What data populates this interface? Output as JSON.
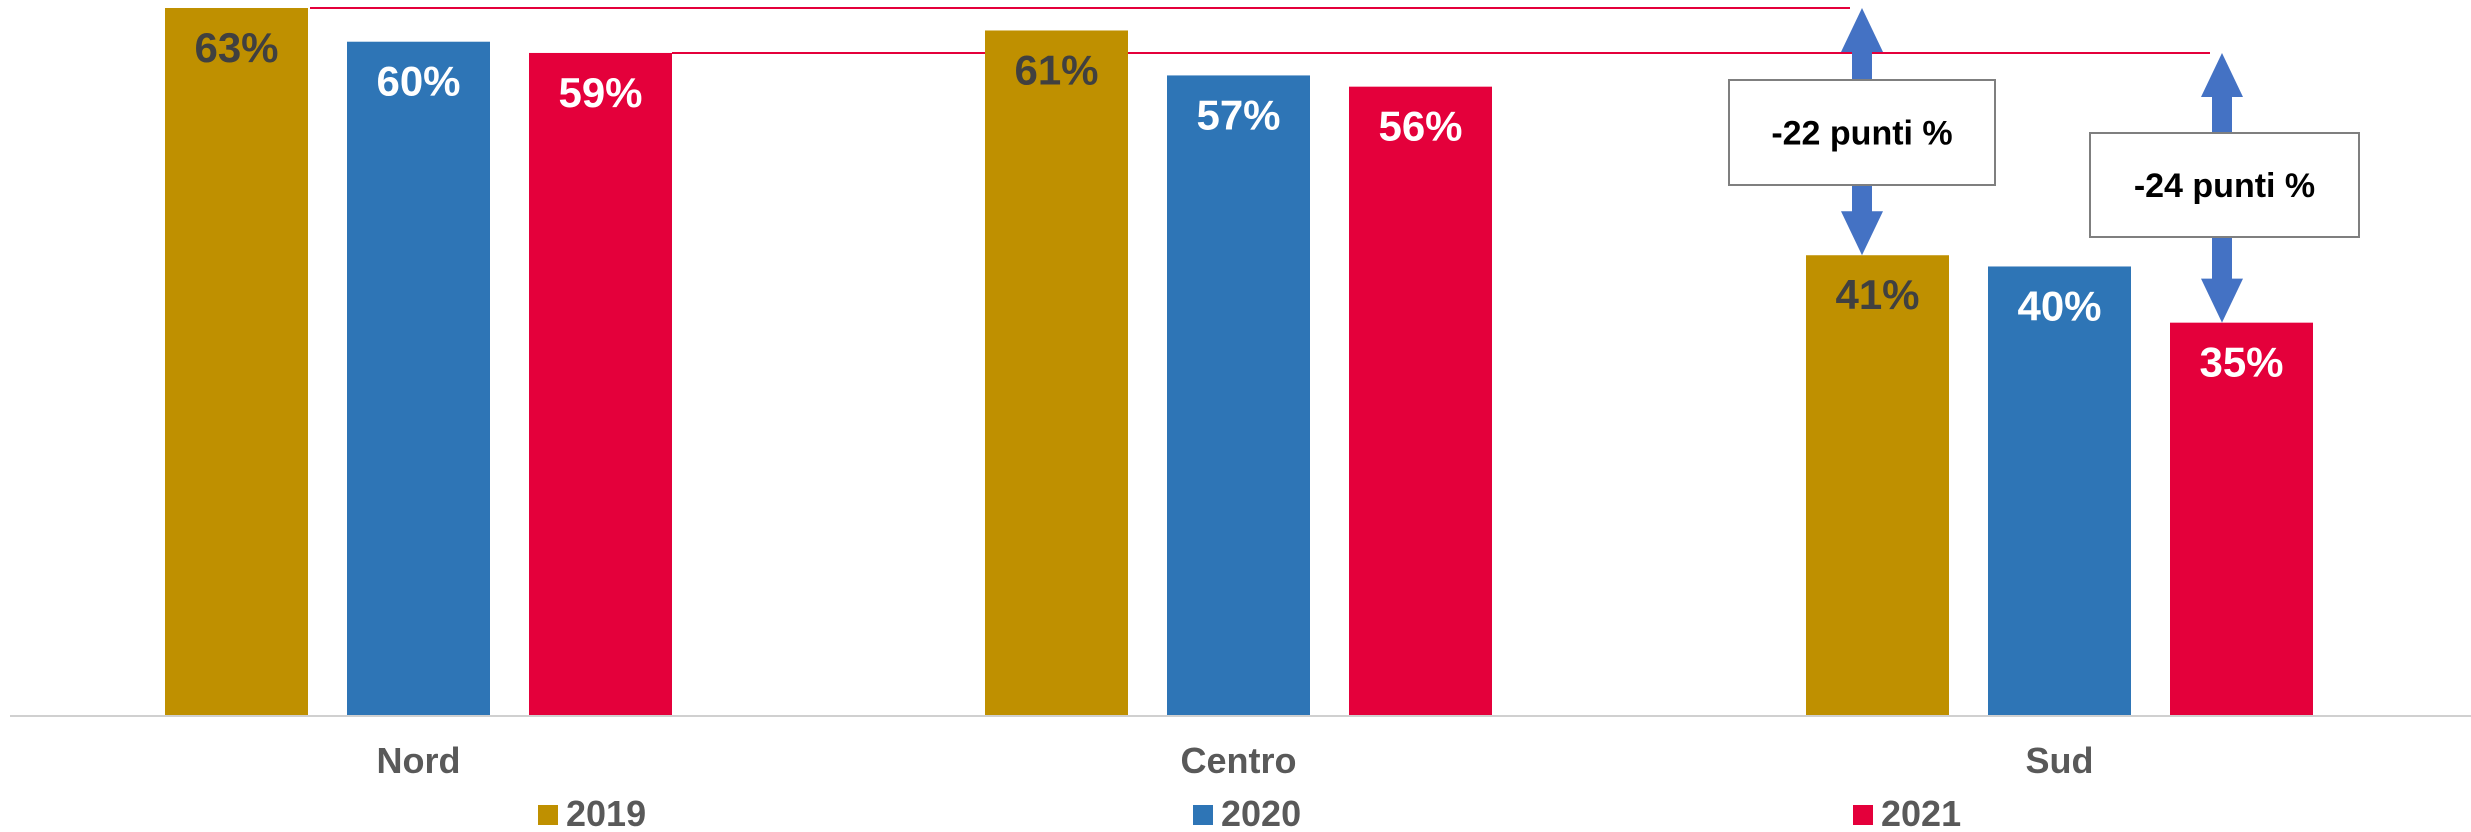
{
  "chart_data": {
    "type": "bar",
    "categories": [
      "Nord",
      "Centro",
      "Sud"
    ],
    "series": [
      {
        "name": "2019",
        "values": [
          63,
          61,
          41
        ],
        "labels": [
          "63%",
          "61%",
          "41%"
        ],
        "color": "#BF9000",
        "label_color": "#404040"
      },
      {
        "name": "2020",
        "values": [
          60,
          57,
          40
        ],
        "labels": [
          "60%",
          "57%",
          "40%"
        ],
        "color": "#2E75B6",
        "label_color": "#ffffff"
      },
      {
        "name": "2021",
        "values": [
          59,
          56,
          35
        ],
        "labels": [
          "59%",
          "56%",
          "35%"
        ],
        "color": "#E4003B",
        "label_color": "#ffffff"
      }
    ],
    "ylim": [
      0,
      63
    ],
    "grid": false,
    "legend_position": "bottom",
    "reference_lines": [
      {
        "from": "Nord 2019",
        "to": "Sud 2019",
        "value": 63,
        "color": "#E4003B"
      },
      {
        "from": "Nord 2021",
        "to": "Sud 2021",
        "value": 59,
        "color": "#E4003B"
      }
    ],
    "annotations": [
      {
        "text": "-22 punti %",
        "compares": "2019",
        "from_value": 63,
        "to_value": 41,
        "arrow_color": "#4472C4"
      },
      {
        "text": "-24 punti %",
        "compares": "2021",
        "from_value": 59,
        "to_value": 35,
        "arrow_color": "#4472C4"
      }
    ]
  }
}
